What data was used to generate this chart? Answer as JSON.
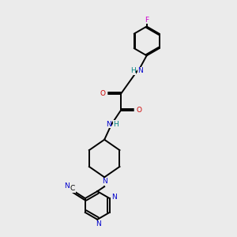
{
  "bg_color": "#ebebeb",
  "bond_color": "#000000",
  "N_color": "#0000cc",
  "O_color": "#cc0000",
  "F_color": "#cc00cc",
  "H_color": "#008080",
  "line_width": 1.4,
  "figsize": [
    3.0,
    3.0
  ],
  "dpi": 100,
  "xlim": [
    0,
    10
  ],
  "ylim": [
    0,
    10
  ]
}
